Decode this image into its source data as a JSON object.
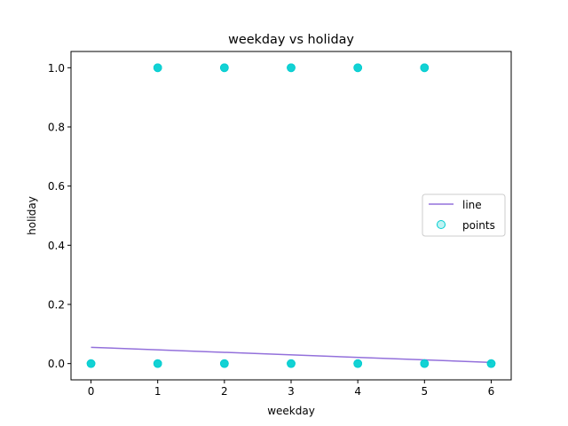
{
  "chart_data": {
    "type": "scatter",
    "title": "weekday vs holiday",
    "xlabel": "weekday",
    "ylabel": "holiday",
    "xlim": [
      -0.3,
      6.3
    ],
    "ylim": [
      -0.055,
      1.055
    ],
    "xticks": [
      0,
      1,
      2,
      3,
      4,
      5,
      6
    ],
    "xtick_labels": [
      "0",
      "1",
      "2",
      "3",
      "4",
      "5",
      "6"
    ],
    "yticks": [
      0.0,
      0.2,
      0.4,
      0.6,
      0.8,
      1.0
    ],
    "ytick_labels": [
      "0.0",
      "0.2",
      "0.4",
      "0.6",
      "0.8",
      "1.0"
    ],
    "grid": false,
    "legend_position": "center-right",
    "series": [
      {
        "name": "line",
        "kind": "line",
        "color": "#9370DB",
        "x": [
          0,
          6
        ],
        "y": [
          0.055,
          0.004
        ]
      },
      {
        "name": "points",
        "kind": "scatter",
        "color": "#00CED1",
        "x": [
          0,
          1,
          2,
          3,
          4,
          5,
          6,
          1,
          2,
          3,
          4,
          5
        ],
        "y": [
          0,
          0,
          0,
          0,
          0,
          0,
          0,
          1,
          1,
          1,
          1,
          1
        ]
      }
    ]
  }
}
